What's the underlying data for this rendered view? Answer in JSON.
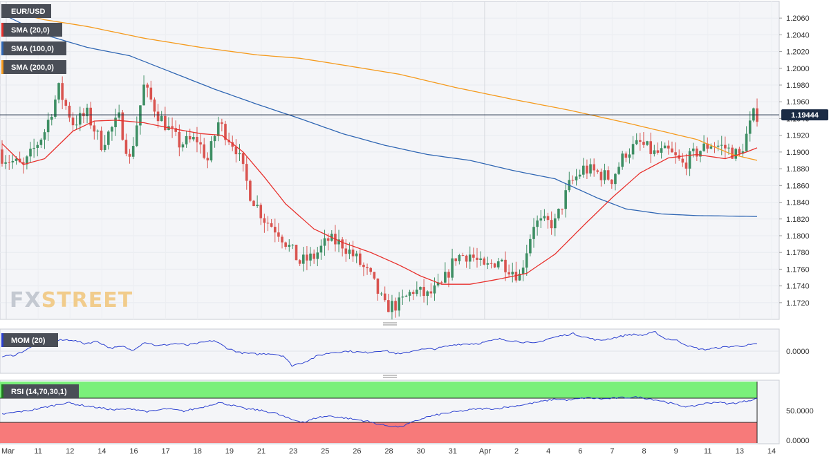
{
  "watermark": {
    "fx": "FX",
    "street": "STREET"
  },
  "colors": {
    "bull": "#3d8e63",
    "bear": "#d9534f",
    "sma20": "#e8302c",
    "sma100": "#2f66b3",
    "sma200": "#f59a1c",
    "mom": "#2a3fd0",
    "rsi": "#2a3fd0",
    "rsi_over": "#7af07a",
    "rsi_under": "#f77a7a",
    "grid": "#e8ebf0",
    "pricebox": "#1b2b44"
  },
  "legend": {
    "symbol": "EUR/USD",
    "sma20": "SMA (20,0)",
    "sma100": "SMA (100,0)",
    "sma200": "SMA (200,0)",
    "mom": "MOM (20)",
    "rsi": "RSI (14,70,30,1)"
  },
  "chart_data": [
    {
      "type": "candlestick",
      "title": "EUR/USD",
      "timeframe_labels": [
        "Mar",
        "11",
        "12",
        "14",
        "16",
        "17",
        "18",
        "19",
        "21",
        "23",
        "25",
        "26",
        "28",
        "30",
        "31",
        "Apr",
        "2",
        "4",
        "6",
        "7",
        "8",
        "9",
        "11",
        "13",
        "14"
      ],
      "ylim": [
        1.1705,
        1.2075
      ],
      "yticks": [
        "1.1720",
        "1.1740",
        "1.1760",
        "1.1780",
        "1.1800",
        "1.1820",
        "1.1840",
        "1.1860",
        "1.1880",
        "1.1900",
        "1.1920",
        "1.1940",
        "1.1960",
        "1.1980",
        "1.2000",
        "1.2020",
        "1.2040",
        "1.2060"
      ],
      "last_price": "1.19444",
      "last_value": 1.19444,
      "close_keypoints": [
        [
          0,
          1.1895
        ],
        [
          6,
          1.1882
        ],
        [
          12,
          1.1925
        ],
        [
          16,
          1.1975
        ],
        [
          20,
          1.1935
        ],
        [
          24,
          1.1945
        ],
        [
          28,
          1.191
        ],
        [
          33,
          1.194
        ],
        [
          36,
          1.189
        ],
        [
          40,
          1.1978
        ],
        [
          44,
          1.1945
        ],
        [
          50,
          1.191
        ],
        [
          55,
          1.1915
        ],
        [
          58,
          1.189
        ],
        [
          61,
          1.1935
        ],
        [
          66,
          1.1905
        ],
        [
          70,
          1.185
        ],
        [
          74,
          1.182
        ],
        [
          78,
          1.1805
        ],
        [
          84,
          1.1768
        ],
        [
          88,
          1.1775
        ],
        [
          92,
          1.1795
        ],
        [
          96,
          1.179
        ],
        [
          100,
          1.1772
        ],
        [
          104,
          1.175
        ],
        [
          108,
          1.1715
        ],
        [
          112,
          1.1718
        ],
        [
          116,
          1.1735
        ],
        [
          120,
          1.1728
        ],
        [
          124,
          1.174
        ],
        [
          128,
          1.1775
        ],
        [
          132,
          1.1778
        ],
        [
          136,
          1.176
        ],
        [
          140,
          1.1772
        ],
        [
          146,
          1.1752
        ],
        [
          150,
          1.1815
        ],
        [
          156,
          1.1815
        ],
        [
          160,
          1.186
        ],
        [
          164,
          1.188
        ],
        [
          168,
          1.1875
        ],
        [
          172,
          1.1868
        ],
        [
          176,
          1.19
        ],
        [
          180,
          1.191
        ],
        [
          184,
          1.1898
        ],
        [
          188,
          1.19
        ],
        [
          192,
          1.1885
        ],
        [
          196,
          1.19
        ],
        [
          200,
          1.191
        ],
        [
          204,
          1.1905
        ],
        [
          208,
          1.1895
        ],
        [
          212,
          1.1944
        ]
      ],
      "sma20_keypoints": [
        [
          0,
          1.191
        ],
        [
          6,
          1.1885
        ],
        [
          12,
          1.1892
        ],
        [
          20,
          1.1925
        ],
        [
          26,
          1.1937
        ],
        [
          32,
          1.1938
        ],
        [
          40,
          1.1935
        ],
        [
          48,
          1.1928
        ],
        [
          56,
          1.1922
        ],
        [
          62,
          1.192
        ],
        [
          68,
          1.19
        ],
        [
          74,
          1.187
        ],
        [
          80,
          1.1838
        ],
        [
          88,
          1.1808
        ],
        [
          96,
          1.1792
        ],
        [
          104,
          1.178
        ],
        [
          112,
          1.1765
        ],
        [
          118,
          1.1752
        ],
        [
          124,
          1.1742
        ],
        [
          132,
          1.1742
        ],
        [
          140,
          1.1748
        ],
        [
          148,
          1.1755
        ],
        [
          156,
          1.1778
        ],
        [
          164,
          1.1812
        ],
        [
          172,
          1.1845
        ],
        [
          180,
          1.1875
        ],
        [
          188,
          1.1893
        ],
        [
          196,
          1.1897
        ],
        [
          204,
          1.1892
        ],
        [
          210,
          1.19
        ],
        [
          213,
          1.1905
        ]
      ],
      "sma100_keypoints": [
        [
          0,
          1.2065
        ],
        [
          12,
          1.204
        ],
        [
          24,
          1.2025
        ],
        [
          36,
          1.2015
        ],
        [
          48,
          1.1995
        ],
        [
          60,
          1.1975
        ],
        [
          72,
          1.1957
        ],
        [
          84,
          1.194
        ],
        [
          96,
          1.1922
        ],
        [
          108,
          1.1908
        ],
        [
          120,
          1.1897
        ],
        [
          132,
          1.189
        ],
        [
          144,
          1.1878
        ],
        [
          156,
          1.1868
        ],
        [
          168,
          1.1845
        ],
        [
          176,
          1.1832
        ],
        [
          186,
          1.1826
        ],
        [
          196,
          1.1824
        ],
        [
          213,
          1.1823
        ]
      ],
      "sma200_keypoints": [
        [
          0,
          1.207
        ],
        [
          12,
          1.2058
        ],
        [
          24,
          1.205
        ],
        [
          40,
          1.2036
        ],
        [
          56,
          1.2025
        ],
        [
          72,
          1.2016
        ],
        [
          84,
          1.2012
        ],
        [
          96,
          1.2004
        ],
        [
          112,
          1.1993
        ],
        [
          128,
          1.1977
        ],
        [
          144,
          1.1963
        ],
        [
          160,
          1.195
        ],
        [
          176,
          1.1935
        ],
        [
          196,
          1.1915
        ],
        [
          206,
          1.1897
        ],
        [
          213,
          1.189
        ]
      ]
    },
    {
      "type": "line",
      "title": "MOM (20)",
      "ytick": "0.0000",
      "keypoints": [
        [
          0,
          -0.35
        ],
        [
          6,
          -0.25
        ],
        [
          12,
          0.15
        ],
        [
          18,
          0.6
        ],
        [
          22,
          1.0
        ],
        [
          26,
          0.7
        ],
        [
          32,
          0.75
        ],
        [
          38,
          0.5
        ],
        [
          44,
          0.65
        ],
        [
          50,
          0.2
        ],
        [
          56,
          0.3
        ],
        [
          60,
          0.05
        ],
        [
          66,
          0.6
        ],
        [
          72,
          0.35
        ],
        [
          80,
          0.5
        ],
        [
          86,
          0.4
        ],
        [
          92,
          0.55
        ],
        [
          98,
          0.7
        ],
        [
          104,
          0.2
        ],
        [
          110,
          -0.1
        ],
        [
          118,
          -0.2
        ],
        [
          124,
          -0.15
        ],
        [
          130,
          -0.3
        ],
        [
          134,
          -0.95
        ],
        [
          140,
          -0.7
        ],
        [
          146,
          -0.3
        ],
        [
          152,
          -0.1
        ],
        [
          160,
          0.0
        ],
        [
          168,
          -0.1
        ],
        [
          176,
          0.05
        ],
        [
          184,
          -0.2
        ],
        [
          192,
          0.1
        ],
        [
          200,
          0.15
        ],
        [
          210,
          0.45
        ],
        [
          220,
          0.5
        ],
        [
          230,
          0.8
        ],
        [
          238,
          0.65
        ],
        [
          246,
          0.5
        ],
        [
          252,
          0.8
        ],
        [
          258,
          1.0
        ],
        [
          264,
          1.15
        ],
        [
          270,
          0.9
        ],
        [
          276,
          0.7
        ],
        [
          282,
          0.85
        ],
        [
          290,
          1.1
        ],
        [
          296,
          1.05
        ],
        [
          302,
          1.25
        ],
        [
          306,
          0.85
        ],
        [
          312,
          0.7
        ],
        [
          318,
          0.3
        ],
        [
          324,
          0.1
        ],
        [
          330,
          0.2
        ],
        [
          336,
          0.3
        ],
        [
          342,
          0.35
        ],
        [
          348,
          0.45
        ]
      ]
    },
    {
      "type": "line",
      "title": "RSI (14,70,30,1)",
      "yticks": [
        "0.0000",
        "50.0000"
      ],
      "levels": [
        70,
        30
      ],
      "keypoints": [
        [
          0,
          43
        ],
        [
          8,
          47
        ],
        [
          14,
          50
        ],
        [
          22,
          56
        ],
        [
          30,
          62
        ],
        [
          36,
          58
        ],
        [
          44,
          54
        ],
        [
          52,
          50
        ],
        [
          60,
          52
        ],
        [
          68,
          47
        ],
        [
          76,
          52
        ],
        [
          84,
          48
        ],
        [
          92,
          54
        ],
        [
          100,
          62
        ],
        [
          106,
          58
        ],
        [
          112,
          52
        ],
        [
          118,
          50
        ],
        [
          126,
          45
        ],
        [
          134,
          34
        ],
        [
          140,
          30
        ],
        [
          146,
          38
        ],
        [
          152,
          40
        ],
        [
          160,
          36
        ],
        [
          168,
          32
        ],
        [
          176,
          25
        ],
        [
          184,
          22
        ],
        [
          190,
          30
        ],
        [
          196,
          38
        ],
        [
          204,
          44
        ],
        [
          212,
          48
        ],
        [
          220,
          52
        ],
        [
          228,
          52
        ],
        [
          234,
          55
        ],
        [
          240,
          58
        ],
        [
          248,
          63
        ],
        [
          256,
          68
        ],
        [
          262,
          66
        ],
        [
          270,
          70
        ],
        [
          278,
          68
        ],
        [
          286,
          70
        ],
        [
          294,
          71
        ],
        [
          300,
          68
        ],
        [
          306,
          64
        ],
        [
          312,
          58
        ],
        [
          318,
          55
        ],
        [
          324,
          60
        ],
        [
          330,
          63
        ],
        [
          336,
          60
        ],
        [
          342,
          63
        ],
        [
          348,
          68
        ]
      ]
    }
  ]
}
